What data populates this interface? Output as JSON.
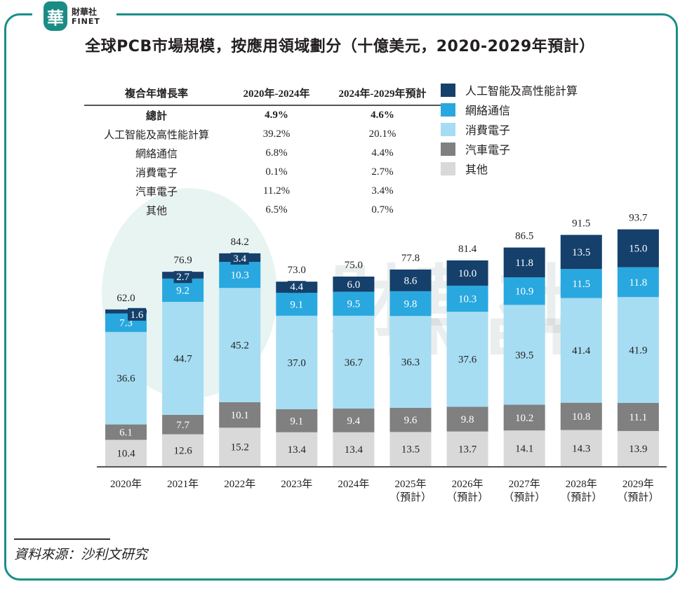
{
  "logo": {
    "badge_char": "華",
    "name_zh": "財華社",
    "name_en": "FINET"
  },
  "title": "全球PCB市場規模，按應用領域劃分（十億美元，2020-2029年預計）",
  "watermark": {
    "zh": "財華社",
    "en": "FINET"
  },
  "cagr_table": {
    "headers": [
      "複合年增長率",
      "2020年-2024年",
      "2024年-2029年預計"
    ],
    "rows": [
      {
        "label": "總計",
        "v1": "4.9%",
        "v2": "4.6%",
        "bold": true
      },
      {
        "label": "人工智能及高性能計算",
        "v1": "39.2%",
        "v2": "20.1%"
      },
      {
        "label": "網絡通信",
        "v1": "6.8%",
        "v2": "4.4%"
      },
      {
        "label": "消費電子",
        "v1": "0.1%",
        "v2": "2.7%"
      },
      {
        "label": "汽車電子",
        "v1": "11.2%",
        "v2": "3.4%"
      },
      {
        "label": "其他",
        "v1": "6.5%",
        "v2": "0.7%"
      }
    ]
  },
  "chart_data": {
    "type": "bar",
    "stacked": true,
    "title": "全球PCB市場規模，按應用領域劃分（十億美元，2020-2029年預計）",
    "xlabel": "",
    "ylabel": "",
    "unit": "十億美元",
    "categories": [
      "2020年",
      "2021年",
      "2022年",
      "2023年",
      "2024年",
      "2025年",
      "2026年",
      "2027年",
      "2028年",
      "2029年"
    ],
    "category_sublabels": [
      "",
      "",
      "",
      "",
      "",
      "（預計）",
      "（預計）",
      "（預計）",
      "（預計）",
      "（預計）"
    ],
    "totals": [
      62.0,
      76.9,
      84.2,
      73.0,
      75.0,
      77.8,
      81.4,
      86.5,
      91.5,
      93.7
    ],
    "series": [
      {
        "name": "其他",
        "color": "#d9d9d9",
        "label_color": "#231f20",
        "values": [
          10.4,
          12.6,
          15.2,
          13.4,
          13.4,
          13.5,
          13.7,
          14.1,
          14.3,
          13.9
        ]
      },
      {
        "name": "汽車電子",
        "color": "#808080",
        "label_color": "#ffffff",
        "values": [
          6.1,
          7.7,
          10.1,
          9.1,
          9.4,
          9.6,
          9.8,
          10.2,
          10.8,
          11.1
        ]
      },
      {
        "name": "消費電子",
        "color": "#a6ddf2",
        "label_color": "#231f20",
        "values": [
          36.6,
          44.7,
          45.2,
          37.0,
          36.7,
          36.3,
          37.6,
          39.5,
          41.4,
          41.9
        ]
      },
      {
        "name": "網絡通信",
        "color": "#29a8df",
        "label_color": "#ffffff",
        "values": [
          7.3,
          9.2,
          10.3,
          9.1,
          9.5,
          9.8,
          10.3,
          10.9,
          11.5,
          11.8
        ]
      },
      {
        "name": "人工智能及高性能計算",
        "color": "#15406b",
        "label_color": "#ffffff",
        "values": [
          1.6,
          2.7,
          3.4,
          4.4,
          6.0,
          8.6,
          10.0,
          11.8,
          13.5,
          15.0
        ]
      }
    ],
    "legend_order": [
      "人工智能及高性能計算",
      "網絡通信",
      "消費電子",
      "汽車電子",
      "其他"
    ],
    "legend_position": "top-right",
    "ylim": [
      0,
      100
    ],
    "grid": false
  },
  "source": "資料來源：沙利文研究"
}
